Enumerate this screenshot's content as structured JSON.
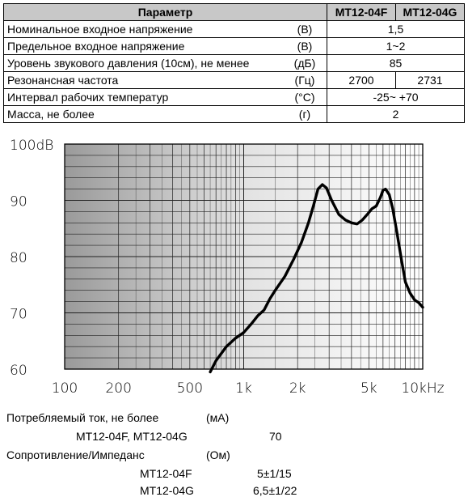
{
  "table": {
    "header": {
      "param": "Параметр",
      "model_f": "MT12-04F",
      "model_g": "MT12-04G"
    },
    "rows": [
      {
        "name": "Номинальное входное напряжение",
        "unit": "(В)",
        "value": "1,5"
      },
      {
        "name": "Предельное входное напряжение",
        "unit": "(В)",
        "value": "1~2"
      },
      {
        "name": "Уровень звукового давления (10см), не менее",
        "unit": "(дБ)",
        "value": "85"
      },
      {
        "name": "Резонансная частота",
        "unit": "(Гц)",
        "value_f": "2700",
        "value_g": "2731"
      },
      {
        "name": "Интервал рабочих температур",
        "unit": "(°С)",
        "value": "-25~ +70"
      },
      {
        "name": "Масса, не более",
        "unit": "(г)",
        "value": "2"
      }
    ]
  },
  "chart_data": {
    "type": "line",
    "x_scale": "log",
    "xlim": [
      100,
      10000
    ],
    "ylim": [
      60,
      100
    ],
    "x_ticks": [
      {
        "value": 100,
        "label": "100"
      },
      {
        "value": 200,
        "label": "200"
      },
      {
        "value": 500,
        "label": "500"
      },
      {
        "value": 1000,
        "label": "1k"
      },
      {
        "value": 2000,
        "label": "2k"
      },
      {
        "value": 5000,
        "label": "5k"
      },
      {
        "value": 10000,
        "label": "10kHz"
      }
    ],
    "y_ticks": [
      {
        "value": 100,
        "label": "100dB"
      },
      {
        "value": 90,
        "label": "90"
      },
      {
        "value": 80,
        "label": "80"
      },
      {
        "value": 70,
        "label": "70"
      },
      {
        "value": 60,
        "label": "60"
      }
    ],
    "grid": true,
    "series": [
      {
        "x": [
          650,
          700,
          800,
          900,
          1000,
          1100,
          1200,
          1300,
          1400,
          1500,
          1700,
          1900,
          2100,
          2300,
          2450,
          2600,
          2750,
          2900,
          3100,
          3400,
          3700,
          4000,
          4300,
          4600,
          4900,
          5200,
          5500,
          5800,
          6000,
          6200,
          6500,
          6800,
          7200,
          7600,
          8000,
          8500,
          9000,
          9500,
          10000
        ],
        "y": [
          59.5,
          61.5,
          64,
          65.5,
          66.5,
          68,
          69.5,
          70.5,
          72.5,
          74,
          76.5,
          79.5,
          82.5,
          86,
          89,
          92,
          92.8,
          92.2,
          90,
          87.5,
          86.5,
          86,
          85.8,
          86.5,
          87.5,
          88.5,
          89,
          90.5,
          91.8,
          92,
          91,
          88.5,
          84,
          79.5,
          75.5,
          73.5,
          72.3,
          71.8,
          71
        ]
      }
    ]
  },
  "below": {
    "current_label": "Потребляемый ток, не более",
    "current_unit": "(мА)",
    "current_models": "MT12-04F, MT12-04G",
    "current_value": "70",
    "imp_label": "Сопротивление/Импеданс",
    "imp_unit": "(Ом)",
    "imp_f_model": "MT12-04F",
    "imp_f_value": "5±1/15",
    "imp_g_model": "MT12-04G",
    "imp_g_value": "6,5±1/22"
  }
}
